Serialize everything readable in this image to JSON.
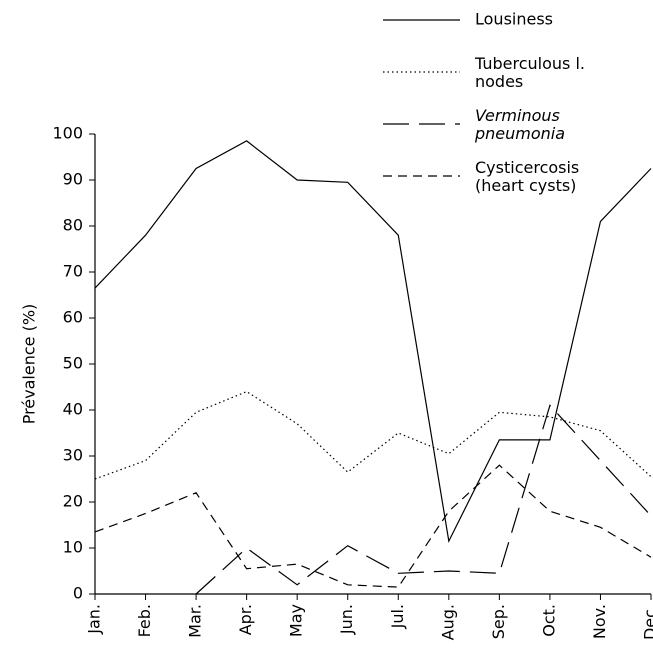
{
  "chart_data": {
    "type": "line",
    "ylabel": "Prévalence (%)",
    "categories": [
      "Jan.",
      "Feb.",
      "Mar.",
      "Apr.",
      "May",
      "Jun.",
      "Jul.",
      "Aug.",
      "Sep.",
      "Oct.",
      "Nov.",
      "Dec."
    ],
    "series": [
      {
        "name": "Lousiness",
        "color": "#000000",
        "dash": "solid",
        "values": [
          66.5,
          78,
          92.5,
          98.5,
          90,
          89.5,
          78,
          11.5,
          33.5,
          33.5,
          81,
          92.5
        ]
      },
      {
        "name": "Tuberculous l. nodes",
        "color": "#000000",
        "dash": "dotted",
        "values": [
          25,
          29,
          39.5,
          44,
          37,
          26.5,
          35,
          30.5,
          39.5,
          38.5,
          35.5,
          25.5
        ]
      },
      {
        "name": "Verminous pneumonia",
        "color": "#000000",
        "dash": "long-dashed",
        "italic": true,
        "values": [
          null,
          null,
          0,
          10,
          2,
          10.5,
          4.5,
          5,
          4.5,
          41,
          29,
          17
        ]
      },
      {
        "name": "Cysticercosis (heart cysts)",
        "color": "#000000",
        "dash": "dashed",
        "values": [
          13.5,
          17.5,
          22,
          5.5,
          6.5,
          2,
          1.5,
          18,
          28,
          18,
          14.5,
          8
        ]
      }
    ],
    "ylim": [
      0,
      100
    ],
    "yticks": [
      0,
      10,
      20,
      30,
      40,
      50,
      60,
      70,
      80,
      90,
      100
    ],
    "grid": false,
    "legend": "upper right"
  }
}
